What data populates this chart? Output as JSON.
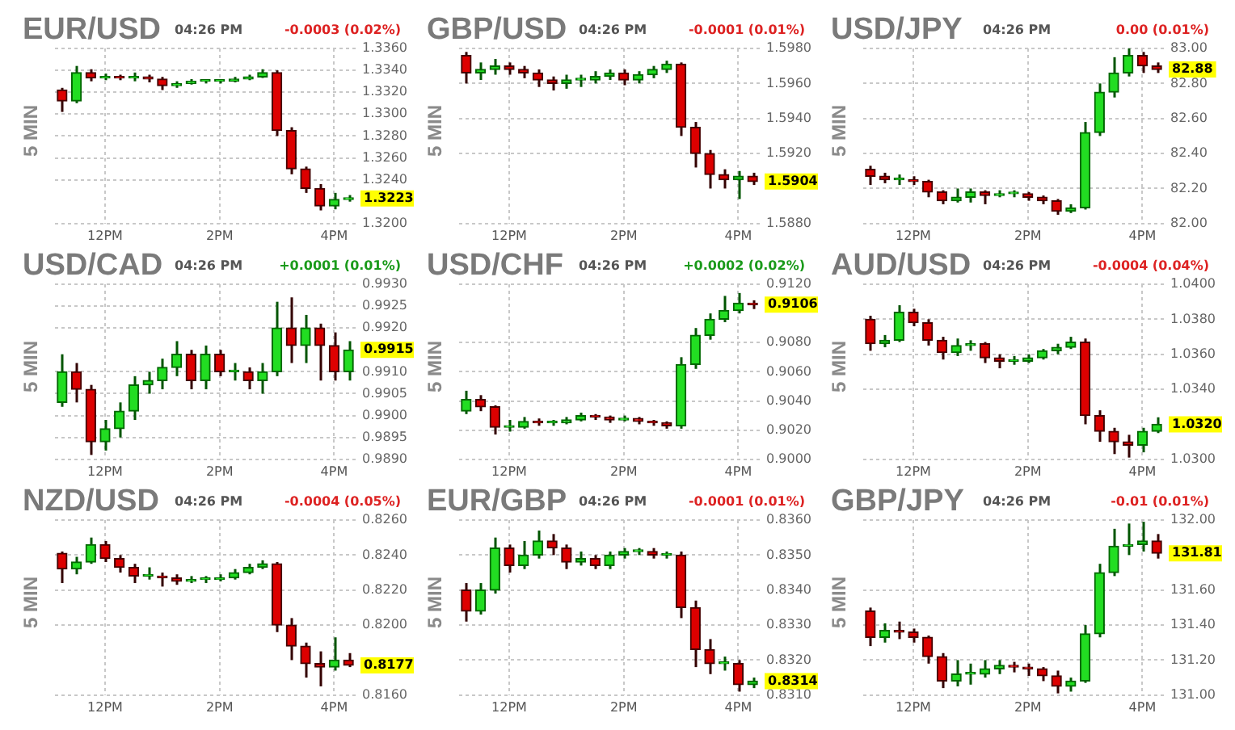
{
  "chart_data": [
    {
      "type": "candlestick",
      "title": "EUR/USD",
      "subtitle": "04:26 PM",
      "ylabel": "5 MIN",
      "annotations": [
        "-0.0003 (0.02%)",
        "1.3223"
      ],
      "grid": true,
      "ylim": [
        1.32,
        1.336
      ],
      "yticks": [
        {
          "value": 1.32,
          "label": "1.3200"
        },
        {
          "value": 1.324,
          "label": "1.3240"
        },
        {
          "value": 1.326,
          "label": "1.3260"
        },
        {
          "value": 1.328,
          "label": "1.3280"
        },
        {
          "value": 1.33,
          "label": "1.3300"
        },
        {
          "value": 1.332,
          "label": "1.3320"
        },
        {
          "value": 1.334,
          "label": "1.3340"
        },
        {
          "value": 1.336,
          "label": "1.3360"
        }
      ],
      "categories": [
        null,
        null,
        null,
        "12PM",
        null,
        null,
        null,
        null,
        null,
        null,
        null,
        "2PM",
        null,
        null,
        null,
        null,
        null,
        null,
        null,
        "4PM",
        null
      ],
      "ohlc": [
        [
          1.3322,
          1.3324,
          1.3302,
          1.3312
        ],
        [
          1.3312,
          1.3344,
          1.331,
          1.3338
        ],
        [
          1.3338,
          1.3341,
          1.333,
          1.3333
        ],
        [
          1.3333,
          1.3337,
          1.3331,
          1.3334
        ],
        [
          1.3334,
          1.3336,
          1.3331,
          1.3333
        ],
        [
          1.3333,
          1.3338,
          1.333,
          1.3334
        ],
        [
          1.3334,
          1.3336,
          1.3329,
          1.3332
        ],
        [
          1.3332,
          1.3334,
          1.3322,
          1.3326
        ],
        [
          1.3326,
          1.333,
          1.3324,
          1.3328
        ],
        [
          1.3328,
          1.3332,
          1.3327,
          1.333
        ],
        [
          1.333,
          1.3332,
          1.3328,
          1.333
        ],
        [
          1.333,
          1.3332,
          1.3328,
          1.333
        ],
        [
          1.333,
          1.3334,
          1.3329,
          1.3332
        ],
        [
          1.3332,
          1.3336,
          1.3331,
          1.3334
        ],
        [
          1.3334,
          1.3341,
          1.3333,
          1.3338
        ],
        [
          1.3338,
          1.334,
          1.328,
          1.3285
        ],
        [
          1.3285,
          1.3288,
          1.3245,
          1.325
        ],
        [
          1.325,
          1.3252,
          1.3228,
          1.3232
        ],
        [
          1.3232,
          1.3236,
          1.3212,
          1.3216
        ],
        [
          1.3216,
          1.3228,
          1.3213,
          1.3222
        ],
        [
          1.3222,
          1.3226,
          1.322,
          1.3223
        ]
      ]
    },
    {
      "type": "candlestick",
      "title": "GBP/USD",
      "subtitle": "04:26 PM",
      "ylabel": "5 MIN",
      "annotations": [
        "-0.0001 (0.01%)",
        "1.5904"
      ],
      "grid": true,
      "ylim": [
        1.588,
        1.598
      ],
      "yticks": [
        {
          "value": 1.588,
          "label": "1.5880"
        },
        {
          "value": 1.592,
          "label": "1.5920"
        },
        {
          "value": 1.594,
          "label": "1.5940"
        },
        {
          "value": 1.596,
          "label": "1.5960"
        },
        {
          "value": 1.598,
          "label": "1.5980"
        }
      ],
      "categories": [
        null,
        null,
        null,
        "12PM",
        null,
        null,
        null,
        null,
        null,
        null,
        null,
        "2PM",
        null,
        null,
        null,
        null,
        null,
        null,
        null,
        "4PM",
        null
      ],
      "ohlc": [
        [
          1.5976,
          1.5978,
          1.596,
          1.5966
        ],
        [
          1.5966,
          1.5972,
          1.5962,
          1.5968
        ],
        [
          1.5968,
          1.5974,
          1.5965,
          1.597
        ],
        [
          1.597,
          1.5972,
          1.5965,
          1.5968
        ],
        [
          1.5968,
          1.597,
          1.5963,
          1.5966
        ],
        [
          1.5966,
          1.5968,
          1.5958,
          1.5962
        ],
        [
          1.5962,
          1.5964,
          1.5956,
          1.596
        ],
        [
          1.596,
          1.5965,
          1.5957,
          1.5962
        ],
        [
          1.5962,
          1.5965,
          1.5958,
          1.5962
        ],
        [
          1.5962,
          1.5967,
          1.596,
          1.5964
        ],
        [
          1.5964,
          1.5968,
          1.5962,
          1.5966
        ],
        [
          1.5966,
          1.5968,
          1.5959,
          1.5962
        ],
        [
          1.5962,
          1.5967,
          1.596,
          1.5965
        ],
        [
          1.5965,
          1.597,
          1.5963,
          1.5968
        ],
        [
          1.5968,
          1.5973,
          1.5966,
          1.5971
        ],
        [
          1.5971,
          1.5972,
          1.593,
          1.5935
        ],
        [
          1.5935,
          1.5938,
          1.5912,
          1.592
        ],
        [
          1.592,
          1.5922,
          1.59,
          1.5908
        ],
        [
          1.5908,
          1.5911,
          1.59,
          1.5905
        ],
        [
          1.5905,
          1.591,
          1.5894,
          1.5907
        ],
        [
          1.5907,
          1.5909,
          1.5902,
          1.5904
        ]
      ]
    },
    {
      "type": "candlestick",
      "title": "USD/JPY",
      "subtitle": "04:26 PM",
      "ylabel": "5 MIN",
      "annotations": [
        "0.00 (0.01%)",
        "82.88"
      ],
      "grid": true,
      "ylim": [
        82,
        83
      ],
      "yticks": [
        {
          "value": 82,
          "label": "82.00"
        },
        {
          "value": 82.2,
          "label": "82.20"
        },
        {
          "value": 82.4,
          "label": "82.40"
        },
        {
          "value": 82.6,
          "label": "82.60"
        },
        {
          "value": 82.8,
          "label": "82.80"
        },
        {
          "value": 83,
          "label": "83.00"
        }
      ],
      "categories": [
        null,
        null,
        null,
        "12PM",
        null,
        null,
        null,
        null,
        null,
        null,
        null,
        "2PM",
        null,
        null,
        null,
        null,
        null,
        null,
        null,
        "4PM",
        null
      ],
      "ohlc": [
        [
          82.31,
          82.33,
          82.22,
          82.27
        ],
        [
          82.27,
          82.29,
          82.23,
          82.25
        ],
        [
          82.25,
          82.28,
          82.22,
          82.25
        ],
        [
          82.25,
          82.27,
          82.22,
          82.24
        ],
        [
          82.24,
          82.25,
          82.15,
          82.18
        ],
        [
          82.18,
          82.19,
          82.11,
          82.13
        ],
        [
          82.13,
          82.2,
          82.12,
          82.15
        ],
        [
          82.15,
          82.2,
          82.12,
          82.18
        ],
        [
          82.18,
          82.19,
          82.11,
          82.16
        ],
        [
          82.16,
          82.19,
          82.15,
          82.17
        ],
        [
          82.17,
          82.19,
          82.15,
          82.17
        ],
        [
          82.17,
          82.18,
          82.13,
          82.15
        ],
        [
          82.15,
          82.16,
          82.11,
          82.13
        ],
        [
          82.13,
          82.14,
          82.05,
          82.07
        ],
        [
          82.07,
          82.11,
          82.06,
          82.09
        ],
        [
          82.09,
          82.58,
          82.08,
          82.52
        ],
        [
          82.52,
          82.8,
          82.5,
          82.75
        ],
        [
          82.75,
          82.95,
          82.72,
          82.86
        ],
        [
          82.86,
          83,
          82.84,
          82.96
        ],
        [
          82.96,
          82.98,
          82.86,
          82.9
        ],
        [
          82.9,
          82.92,
          82.86,
          82.88
        ]
      ]
    },
    {
      "type": "candlestick",
      "title": "USD/CAD",
      "subtitle": "04:26 PM",
      "ylabel": "5 MIN",
      "annotations": [
        "+0.0001 (0.01%)",
        "0.9915"
      ],
      "grid": true,
      "ylim": [
        0.989,
        0.993
      ],
      "yticks": [
        {
          "value": 0.989,
          "label": "0.9890"
        },
        {
          "value": 0.9895,
          "label": "0.9895"
        },
        {
          "value": 0.99,
          "label": "0.9900"
        },
        {
          "value": 0.9905,
          "label": "0.9905"
        },
        {
          "value": 0.991,
          "label": "0.9910"
        },
        {
          "value": 0.992,
          "label": "0.9920"
        },
        {
          "value": 0.9925,
          "label": "0.9925"
        },
        {
          "value": 0.993,
          "label": "0.9930"
        }
      ],
      "categories": [
        null,
        null,
        null,
        "12PM",
        null,
        null,
        null,
        null,
        null,
        null,
        null,
        "2PM",
        null,
        null,
        null,
        null,
        null,
        null,
        null,
        "4PM",
        null
      ],
      "ohlc": [
        [
          0.9903,
          0.9914,
          0.9902,
          0.991
        ],
        [
          0.991,
          0.9912,
          0.9903,
          0.9906
        ],
        [
          0.9906,
          0.9907,
          0.9891,
          0.9894
        ],
        [
          0.9894,
          0.9899,
          0.9892,
          0.9897
        ],
        [
          0.9897,
          0.9903,
          0.9895,
          0.9901
        ],
        [
          0.9901,
          0.9909,
          0.9899,
          0.9907
        ],
        [
          0.9907,
          0.991,
          0.9905,
          0.9908
        ],
        [
          0.9908,
          0.9913,
          0.9906,
          0.9911
        ],
        [
          0.9911,
          0.9917,
          0.9909,
          0.9914
        ],
        [
          0.9914,
          0.9915,
          0.9906,
          0.9908
        ],
        [
          0.9908,
          0.9916,
          0.9906,
          0.9914
        ],
        [
          0.9914,
          0.9915,
          0.9909,
          0.991
        ],
        [
          0.991,
          0.9912,
          0.9908,
          0.991
        ],
        [
          0.991,
          0.9911,
          0.9906,
          0.9908
        ],
        [
          0.9908,
          0.9912,
          0.9905,
          0.991
        ],
        [
          0.991,
          0.9926,
          0.9909,
          0.992
        ],
        [
          0.992,
          0.9927,
          0.9912,
          0.9916
        ],
        [
          0.9916,
          0.9923,
          0.9912,
          0.992
        ],
        [
          0.992,
          0.9921,
          0.9908,
          0.9916
        ],
        [
          0.9916,
          0.9919,
          0.9908,
          0.991
        ],
        [
          0.991,
          0.9917,
          0.9908,
          0.9915
        ]
      ]
    },
    {
      "type": "candlestick",
      "title": "USD/CHF",
      "subtitle": "04:26 PM",
      "ylabel": "5 MIN",
      "annotations": [
        "+0.0002 (0.02%)",
        "0.9106"
      ],
      "grid": true,
      "ylim": [
        0.9,
        0.912
      ],
      "yticks": [
        {
          "value": 0.9,
          "label": "0.9000"
        },
        {
          "value": 0.902,
          "label": "0.9020"
        },
        {
          "value": 0.904,
          "label": "0.9040"
        },
        {
          "value": 0.906,
          "label": "0.9060"
        },
        {
          "value": 0.908,
          "label": "0.9080"
        },
        {
          "value": 0.912,
          "label": "0.9120"
        }
      ],
      "categories": [
        null,
        null,
        null,
        "12PM",
        null,
        null,
        null,
        null,
        null,
        null,
        null,
        "2PM",
        null,
        null,
        null,
        null,
        null,
        null,
        null,
        "4PM",
        null
      ],
      "ohlc": [
        [
          0.9033,
          0.9047,
          0.9031,
          0.9041
        ],
        [
          0.9041,
          0.9044,
          0.9033,
          0.9036
        ],
        [
          0.9036,
          0.9037,
          0.9017,
          0.9022
        ],
        [
          0.9022,
          0.9027,
          0.9019,
          0.9022
        ],
        [
          0.9022,
          0.9029,
          0.9021,
          0.9026
        ],
        [
          0.9026,
          0.9028,
          0.9023,
          0.9025
        ],
        [
          0.9025,
          0.9027,
          0.9023,
          0.9025
        ],
        [
          0.9025,
          0.9029,
          0.9024,
          0.9027
        ],
        [
          0.9027,
          0.9032,
          0.9026,
          0.903
        ],
        [
          0.903,
          0.9031,
          0.9027,
          0.9029
        ],
        [
          0.9029,
          0.903,
          0.9025,
          0.9027
        ],
        [
          0.9027,
          0.903,
          0.9026,
          0.9028
        ],
        [
          0.9028,
          0.9029,
          0.9024,
          0.9026
        ],
        [
          0.9026,
          0.9027,
          0.9023,
          0.9025
        ],
        [
          0.9025,
          0.9026,
          0.9021,
          0.9023
        ],
        [
          0.9023,
          0.907,
          0.9021,
          0.9065
        ],
        [
          0.9065,
          0.909,
          0.9062,
          0.9085
        ],
        [
          0.9085,
          0.91,
          0.9082,
          0.9096
        ],
        [
          0.9096,
          0.9112,
          0.9094,
          0.9102
        ],
        [
          0.9102,
          0.9114,
          0.91,
          0.9107
        ],
        [
          0.9107,
          0.9109,
          0.9103,
          0.9106
        ]
      ]
    },
    {
      "type": "candlestick",
      "title": "AUD/USD",
      "subtitle": "04:26 PM",
      "ylabel": "5 MIN",
      "annotations": [
        "-0.0004 (0.04%)",
        "1.0320"
      ],
      "grid": true,
      "ylim": [
        1.03,
        1.04
      ],
      "yticks": [
        {
          "value": 1.03,
          "label": "1.0300"
        },
        {
          "value": 1.034,
          "label": "1.0340"
        },
        {
          "value": 1.036,
          "label": "1.0360"
        },
        {
          "value": 1.038,
          "label": "1.0380"
        },
        {
          "value": 1.04,
          "label": "1.0400"
        }
      ],
      "categories": [
        null,
        null,
        null,
        "12PM",
        null,
        null,
        null,
        null,
        null,
        null,
        null,
        "2PM",
        null,
        null,
        null,
        null,
        null,
        null,
        null,
        "4PM",
        null
      ],
      "ohlc": [
        [
          1.038,
          1.0382,
          1.0362,
          1.0366
        ],
        [
          1.0366,
          1.0371,
          1.0364,
          1.0368
        ],
        [
          1.0368,
          1.0388,
          1.0367,
          1.0384
        ],
        [
          1.0384,
          1.0386,
          1.0376,
          1.0378
        ],
        [
          1.0378,
          1.038,
          1.0365,
          1.0368
        ],
        [
          1.0368,
          1.037,
          1.0357,
          1.0361
        ],
        [
          1.0361,
          1.0369,
          1.0359,
          1.0365
        ],
        [
          1.0365,
          1.0368,
          1.0362,
          1.0366
        ],
        [
          1.0366,
          1.0367,
          1.0355,
          1.0358
        ],
        [
          1.0358,
          1.036,
          1.0352,
          1.0356
        ],
        [
          1.0356,
          1.0359,
          1.0354,
          1.0356
        ],
        [
          1.0356,
          1.036,
          1.0355,
          1.0358
        ],
        [
          1.0358,
          1.0363,
          1.0357,
          1.0362
        ],
        [
          1.0362,
          1.0366,
          1.036,
          1.0364
        ],
        [
          1.0364,
          1.037,
          1.0363,
          1.0367
        ],
        [
          1.0367,
          1.0369,
          1.032,
          1.0325
        ],
        [
          1.0325,
          1.0328,
          1.031,
          1.0316
        ],
        [
          1.0316,
          1.0318,
          1.0303,
          1.031
        ],
        [
          1.031,
          1.0314,
          1.0301,
          1.0308
        ],
        [
          1.0308,
          1.0318,
          1.0304,
          1.0316
        ],
        [
          1.0316,
          1.0324,
          1.0315,
          1.032
        ]
      ]
    },
    {
      "type": "candlestick",
      "title": "NZD/USD",
      "subtitle": "04:26 PM",
      "ylabel": "5 MIN",
      "annotations": [
        "-0.0004 (0.05%)",
        "0.8177"
      ],
      "grid": true,
      "ylim": [
        0.816,
        0.826
      ],
      "yticks": [
        {
          "value": 0.816,
          "label": "0.8160"
        },
        {
          "value": 0.82,
          "label": "0.8200"
        },
        {
          "value": 0.822,
          "label": "0.8220"
        },
        {
          "value": 0.824,
          "label": "0.8240"
        },
        {
          "value": 0.826,
          "label": "0.8260"
        }
      ],
      "categories": [
        null,
        null,
        null,
        "12PM",
        null,
        null,
        null,
        null,
        null,
        null,
        null,
        "2PM",
        null,
        null,
        null,
        null,
        null,
        null,
        null,
        "4PM",
        null
      ],
      "ohlc": [
        [
          0.8241,
          0.8242,
          0.8224,
          0.8232
        ],
        [
          0.8232,
          0.8239,
          0.8229,
          0.8236
        ],
        [
          0.8236,
          0.825,
          0.8235,
          0.8246
        ],
        [
          0.8246,
          0.8248,
          0.8236,
          0.8238
        ],
        [
          0.8238,
          0.824,
          0.823,
          0.8233
        ],
        [
          0.8233,
          0.8235,
          0.8224,
          0.8228
        ],
        [
          0.8228,
          0.8233,
          0.8226,
          0.8228
        ],
        [
          0.8228,
          0.823,
          0.8222,
          0.8227
        ],
        [
          0.8227,
          0.8229,
          0.8223,
          0.8225
        ],
        [
          0.8225,
          0.8228,
          0.8224,
          0.8226
        ],
        [
          0.8226,
          0.8228,
          0.8224,
          0.8226
        ],
        [
          0.8226,
          0.8229,
          0.8225,
          0.8227
        ],
        [
          0.8227,
          0.8232,
          0.8226,
          0.823
        ],
        [
          0.823,
          0.8235,
          0.8229,
          0.8233
        ],
        [
          0.8233,
          0.8237,
          0.8232,
          0.8235
        ],
        [
          0.8235,
          0.8236,
          0.8196,
          0.82
        ],
        [
          0.82,
          0.8204,
          0.818,
          0.8188
        ],
        [
          0.8188,
          0.819,
          0.817,
          0.8178
        ],
        [
          0.8178,
          0.8185,
          0.8165,
          0.8176
        ],
        [
          0.8176,
          0.8193,
          0.8174,
          0.818
        ],
        [
          0.818,
          0.8184,
          0.8176,
          0.8177
        ]
      ]
    },
    {
      "type": "candlestick",
      "title": "EUR/GBP",
      "subtitle": "04:26 PM",
      "ylabel": "5 MIN",
      "annotations": [
        "-0.0001 (0.01%)",
        "0.8314"
      ],
      "grid": true,
      "ylim": [
        0.831,
        0.836
      ],
      "yticks": [
        {
          "value": 0.831,
          "label": "0.8310"
        },
        {
          "value": 0.832,
          "label": "0.8320"
        },
        {
          "value": 0.833,
          "label": "0.8330"
        },
        {
          "value": 0.834,
          "label": "0.8340"
        },
        {
          "value": 0.835,
          "label": "0.8350"
        },
        {
          "value": 0.836,
          "label": "0.8360"
        }
      ],
      "categories": [
        null,
        null,
        null,
        "12PM",
        null,
        null,
        null,
        null,
        null,
        null,
        null,
        "2PM",
        null,
        null,
        null,
        null,
        null,
        null,
        null,
        "4PM",
        null
      ],
      "ohlc": [
        [
          0.834,
          0.8342,
          0.8331,
          0.8334
        ],
        [
          0.8334,
          0.8342,
          0.8333,
          0.834
        ],
        [
          0.834,
          0.8355,
          0.8339,
          0.8352
        ],
        [
          0.8352,
          0.8353,
          0.8345,
          0.8347
        ],
        [
          0.8347,
          0.8354,
          0.8346,
          0.835
        ],
        [
          0.835,
          0.8357,
          0.8349,
          0.8354
        ],
        [
          0.8354,
          0.8356,
          0.835,
          0.8352
        ],
        [
          0.8352,
          0.8353,
          0.8346,
          0.8348
        ],
        [
          0.8348,
          0.8351,
          0.8347,
          0.8349
        ],
        [
          0.8349,
          0.835,
          0.8346,
          0.8347
        ],
        [
          0.8347,
          0.8351,
          0.8346,
          0.835
        ],
        [
          0.835,
          0.8352,
          0.8349,
          0.8351
        ],
        [
          0.8351,
          0.8352,
          0.835,
          0.8351
        ],
        [
          0.8351,
          0.8352,
          0.8349,
          0.835
        ],
        [
          0.835,
          0.8351,
          0.8349,
          0.835
        ],
        [
          0.835,
          0.8351,
          0.8332,
          0.8335
        ],
        [
          0.8335,
          0.8337,
          0.8318,
          0.8323
        ],
        [
          0.8323,
          0.8326,
          0.8316,
          0.8319
        ],
        [
          0.8319,
          0.8321,
          0.8317,
          0.8319
        ],
        [
          0.8319,
          0.832,
          0.8311,
          0.8313
        ],
        [
          0.8313,
          0.8315,
          0.8312,
          0.8314
        ]
      ]
    },
    {
      "type": "candlestick",
      "title": "GBP/JPY",
      "subtitle": "04:26 PM",
      "ylabel": "5 MIN",
      "annotations": [
        "-0.01 (0.01%)",
        "131.81"
      ],
      "grid": true,
      "ylim": [
        131,
        132
      ],
      "yticks": [
        {
          "value": 131,
          "label": "131.00"
        },
        {
          "value": 131.2,
          "label": "131.20"
        },
        {
          "value": 131.4,
          "label": "131.40"
        },
        {
          "value": 131.6,
          "label": "131.60"
        },
        {
          "value": 132,
          "label": "132.00"
        }
      ],
      "categories": [
        null,
        null,
        null,
        "12PM",
        null,
        null,
        null,
        null,
        null,
        null,
        null,
        "2PM",
        null,
        null,
        null,
        null,
        null,
        null,
        null,
        "4PM",
        null
      ],
      "ohlc": [
        [
          131.48,
          131.5,
          131.28,
          131.33
        ],
        [
          131.33,
          131.41,
          131.3,
          131.37
        ],
        [
          131.37,
          131.42,
          131.32,
          131.36
        ],
        [
          131.36,
          131.38,
          131.3,
          131.33
        ],
        [
          131.33,
          131.34,
          131.18,
          131.22
        ],
        [
          131.22,
          131.24,
          131.04,
          131.08
        ],
        [
          131.08,
          131.2,
          131.05,
          131.12
        ],
        [
          131.12,
          131.18,
          131.06,
          131.12
        ],
        [
          131.12,
          131.2,
          131.1,
          131.15
        ],
        [
          131.15,
          131.2,
          131.12,
          131.17
        ],
        [
          131.17,
          131.19,
          131.13,
          131.16
        ],
        [
          131.16,
          131.18,
          131.11,
          131.15
        ],
        [
          131.15,
          131.16,
          131.08,
          131.11
        ],
        [
          131.11,
          131.14,
          131.01,
          131.05
        ],
        [
          131.05,
          131.1,
          131.02,
          131.08
        ],
        [
          131.08,
          131.4,
          131.07,
          131.35
        ],
        [
          131.35,
          131.75,
          131.33,
          131.7
        ],
        [
          131.7,
          131.95,
          131.68,
          131.85
        ],
        [
          131.85,
          131.98,
          131.8,
          131.86
        ],
        [
          131.86,
          131.99,
          131.82,
          131.88
        ],
        [
          131.88,
          131.92,
          131.78,
          131.81
        ]
      ]
    }
  ]
}
